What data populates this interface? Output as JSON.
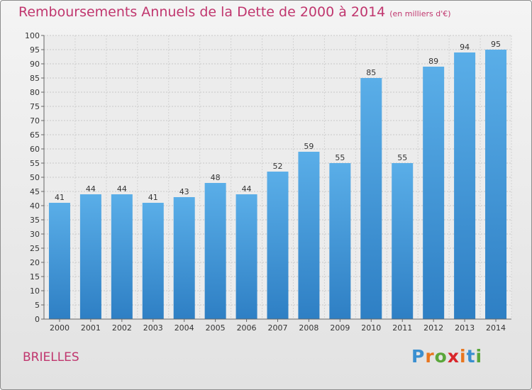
{
  "chart_data": {
    "type": "bar",
    "title": "Remboursements Annuels de la Dette de 2000 à 2014",
    "subtitle": "(en milliers d'€)",
    "categories": [
      "2000",
      "2001",
      "2002",
      "2003",
      "2004",
      "2005",
      "2006",
      "2007",
      "2008",
      "2009",
      "2010",
      "2011",
      "2012",
      "2013",
      "2014"
    ],
    "values": [
      41,
      44,
      44,
      41,
      43,
      48,
      44,
      52,
      59,
      55,
      85,
      55,
      89,
      94,
      95
    ],
    "ylim": [
      0,
      100
    ],
    "ytick_step": 5,
    "grid": true,
    "bar_color": "#4a9fe0",
    "xlabel": "",
    "ylabel": ""
  },
  "footer": {
    "commune": "BRIELLES",
    "logo_letters": [
      "P",
      "r",
      "o",
      "x",
      "i",
      "t",
      "i"
    ],
    "logo_colors": [
      "#3a8fd0",
      "#e8761f",
      "#5aa63a",
      "#d9262b",
      "#e8761f",
      "#3a8fd0",
      "#5aa63a"
    ]
  }
}
